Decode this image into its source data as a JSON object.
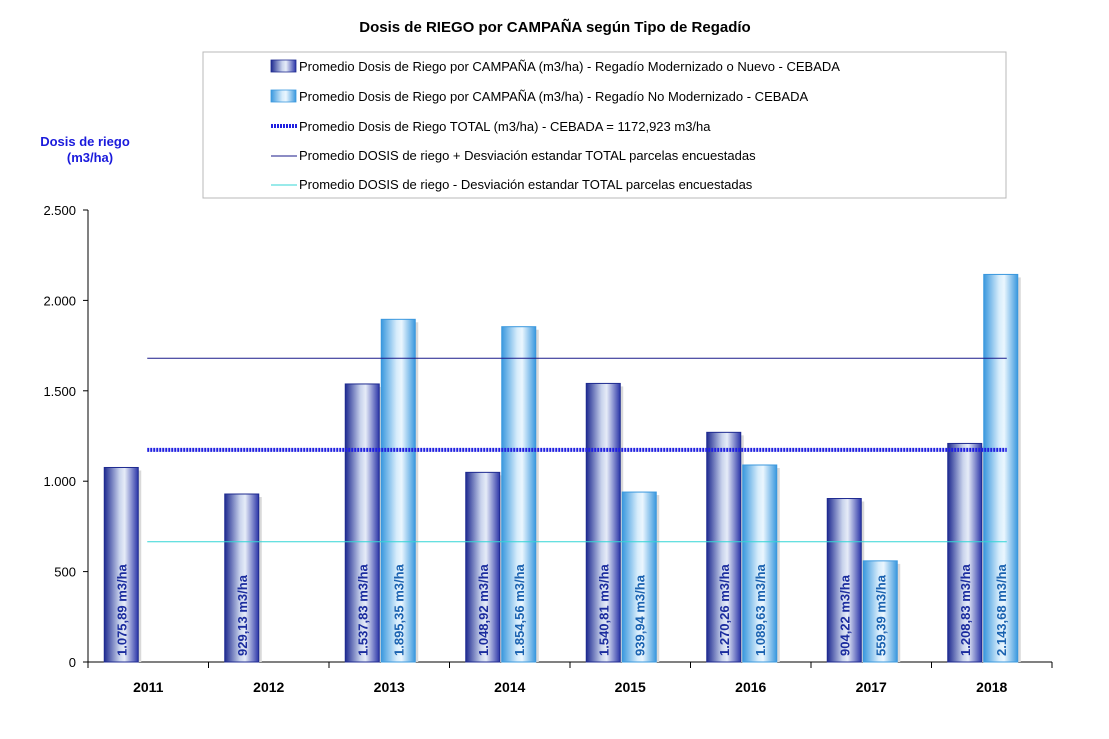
{
  "chart_data": {
    "type": "bar",
    "title": "Dosis de RIEGO por CAMPAÑA según Tipo de Regadío",
    "ylabel_line1": "Dosis de riego",
    "ylabel_line2": "(m3/ha)",
    "ylim": [
      0,
      2500
    ],
    "yticks": [
      0,
      500,
      1000,
      1500,
      2000,
      2500
    ],
    "ytick_labels": [
      "0",
      "500",
      "1.000",
      "1.500",
      "2.000",
      "2.500"
    ],
    "categories": [
      "2011",
      "2012",
      "2013",
      "2014",
      "2015",
      "2016",
      "2017",
      "2018"
    ],
    "series": [
      {
        "name": "Promedio Dosis de Riego por CAMPAÑA (m3/ha) - Regadío Modernizado o Nuevo - CEBADA",
        "color": "#2b35a8",
        "values": [
          1075.89,
          929.13,
          1537.83,
          1048.92,
          1540.81,
          1270.26,
          904.22,
          1208.83
        ],
        "labels": [
          "1.075,89 m3/ha",
          "929,13 m3/ha",
          "1.537,83 m3/ha",
          "1.048,92 m3/ha",
          "1.540,81 m3/ha",
          "1.270,26 m3/ha",
          "904,22 m3/ha",
          "1.208,83 m3/ha"
        ]
      },
      {
        "name": "Promedio Dosis de Riego por CAMPAÑA (m3/ha) - Regadío No Modernizado - CEBADA",
        "color": "#4aa8e8",
        "values": [
          null,
          null,
          1895.35,
          1854.56,
          939.94,
          1089.63,
          559.39,
          2143.68
        ],
        "labels": [
          "",
          "",
          "1.895,35 m3/ha",
          "1.854,56 m3/ha",
          "939,94 m3/ha",
          "1.089,63 m3/ha",
          "559,39 m3/ha",
          "2.143,68 m3/ha"
        ]
      }
    ],
    "reference_lines": [
      {
        "name": "Promedio Dosis de Riego TOTAL (m3/ha) - CEBADA = 1172,923 m3/ha",
        "value": 1172.923,
        "color": "#2020e0",
        "style": "thick-dotted"
      },
      {
        "name": "Promedio DOSIS de riego + Desviación estandar TOTAL parcelas encuestadas",
        "value": 1680,
        "color": "#1a1a8a",
        "style": "thin"
      },
      {
        "name": "Promedio DOSIS de riego - Desviación estandar TOTAL parcelas encuestadas",
        "value": 665,
        "color": "#33d6d6",
        "style": "thin"
      }
    ],
    "legend_position": "top",
    "grid": false
  }
}
